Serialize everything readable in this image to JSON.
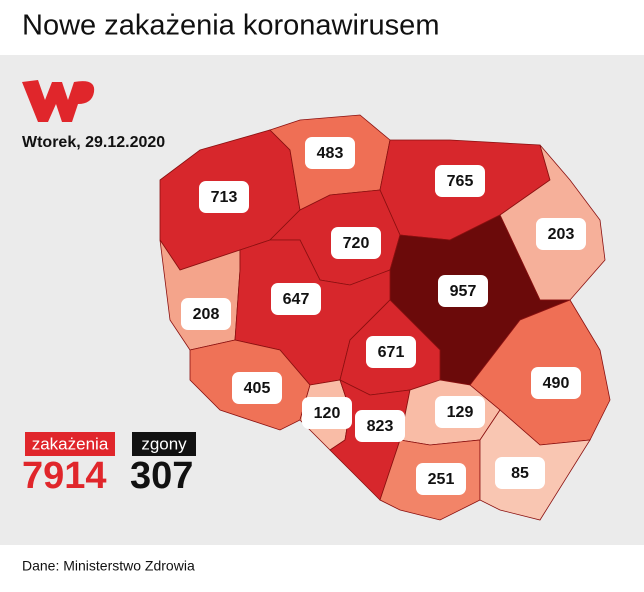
{
  "title": "Nowe zakażenia koronawirusem",
  "date": "Wtorek, 29.12.2020",
  "regions": [
    {
      "value": 713,
      "color": "#d7272c"
    },
    {
      "value": 483,
      "color": "#ef6f55"
    },
    {
      "value": 765,
      "color": "#d7272c"
    },
    {
      "value": 203,
      "color": "#f6b09a"
    },
    {
      "value": 720,
      "color": "#d7272c"
    },
    {
      "value": 957,
      "color": "#6b0a0a"
    },
    {
      "value": 208,
      "color": "#f4a48b"
    },
    {
      "value": 647,
      "color": "#d7272c"
    },
    {
      "value": 671,
      "color": "#d7272c"
    },
    {
      "value": 490,
      "color": "#ef6f55"
    },
    {
      "value": 405,
      "color": "#ef7257"
    },
    {
      "value": 120,
      "color": "#f9bca6"
    },
    {
      "value": 823,
      "color": "#d7272c"
    },
    {
      "value": 129,
      "color": "#f9bca6"
    },
    {
      "value": 251,
      "color": "#f28468"
    },
    {
      "value": 85,
      "color": "#f9c6b2"
    }
  ],
  "legend": {
    "cases_label": "zakażenia",
    "cases_total": 7914,
    "deaths_label": "zgony",
    "deaths_total": 307
  },
  "source": "Dane: Ministerstwo Zdrowia"
}
